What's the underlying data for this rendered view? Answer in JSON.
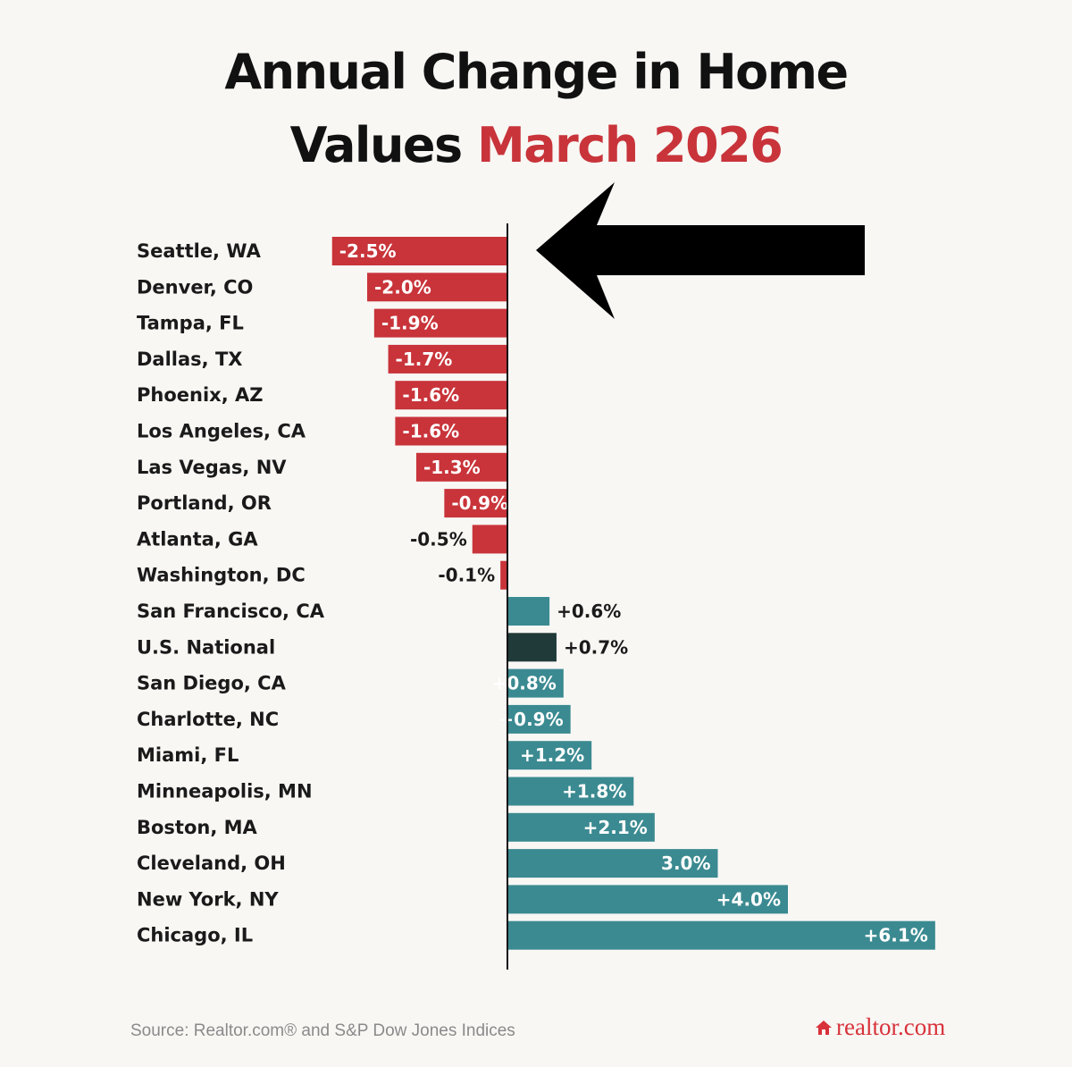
{
  "title": {
    "line1": "Annual Change in Home",
    "line2_plain": "Values",
    "line2_accent": "March 2026"
  },
  "chart_data": {
    "type": "bar",
    "orientation": "horizontal",
    "categories": [
      "Seattle, WA",
      "Denver, CO",
      "Tampa, FL",
      "Dallas, TX",
      "Phoenix, AZ",
      "Los Angeles, CA",
      "Las Vegas, NV",
      "Portland, OR",
      "Atlanta, GA",
      "Washington, DC",
      "San Francisco, CA",
      "U.S. National",
      "San Diego, CA",
      "Charlotte, NC",
      "Miami, FL",
      "Minneapolis, MN",
      "Boston, MA",
      "Cleveland, OH",
      "New York, NY",
      "Chicago, IL"
    ],
    "values": [
      -2.5,
      -2.0,
      -1.9,
      -1.7,
      -1.6,
      -1.6,
      -1.3,
      -0.9,
      -0.5,
      -0.1,
      0.6,
      0.7,
      0.8,
      0.9,
      1.2,
      1.8,
      2.1,
      3.0,
      4.0,
      6.1
    ],
    "labels": [
      "-2.5%",
      "-2.0%",
      "-1.9%",
      "-1.7%",
      "-1.6%",
      "-1.6%",
      "-1.3%",
      "-0.9%",
      "-0.5%",
      "-0.1%",
      "+0.6%",
      "+0.7%",
      "+0.8%",
      "+0.9%",
      "+1.2%",
      "+1.8%",
      "+2.1%",
      "3.0%",
      "+4.0%",
      "+6.1%"
    ],
    "highlight": "U.S. National",
    "colors": {
      "negative": "#c8343a",
      "positive": "#3b8a91",
      "highlight": "#1f3a39"
    },
    "annotation": "arrow-pointing-left-at-top-bar",
    "xlabel": "",
    "ylabel": ""
  },
  "footer": {
    "source": "Source: Realtor.com® and S&P Dow Jones Indices",
    "brand": "realtor.com",
    "brand_icon": "house-icon"
  }
}
